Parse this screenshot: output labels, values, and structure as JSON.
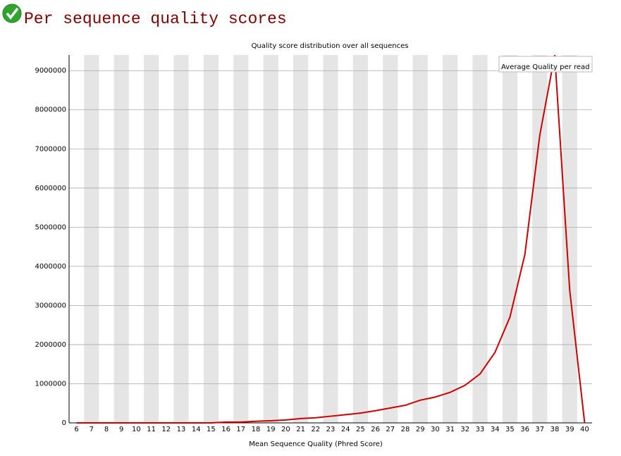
{
  "chart_data": {
    "type": "line",
    "title": "Per sequence quality scores",
    "subtitle": "Quality score distribution over all sequences",
    "x_label": "Mean Sequence Quality (Phred Score)",
    "categories": [
      "6",
      "7",
      "8",
      "9",
      "10",
      "11",
      "12",
      "13",
      "14",
      "15",
      "16",
      "17",
      "18",
      "19",
      "20",
      "21",
      "22",
      "23",
      "24",
      "25",
      "26",
      "27",
      "28",
      "29",
      "30",
      "31",
      "32",
      "33",
      "34",
      "35",
      "36",
      "37",
      "38",
      "39",
      "40"
    ],
    "series": [
      {
        "name": "Average Quality per read",
        "color": "#cc0000",
        "values": [
          0,
          0,
          0,
          0,
          0,
          0,
          0,
          0,
          0,
          0,
          20000,
          20000,
          40000,
          55000,
          75000,
          110000,
          130000,
          170000,
          210000,
          250000,
          310000,
          380000,
          450000,
          580000,
          660000,
          780000,
          960000,
          1250000,
          1800000,
          2700000,
          4300000,
          7350000,
          9400000,
          3400000,
          0
        ]
      }
    ],
    "ylim": [
      0,
      9400000
    ],
    "yticks": [
      0,
      1000000,
      2000000,
      3000000,
      4000000,
      5000000,
      6000000,
      7000000,
      8000000,
      9000000
    ],
    "grid": true,
    "legend": "top-right"
  }
}
